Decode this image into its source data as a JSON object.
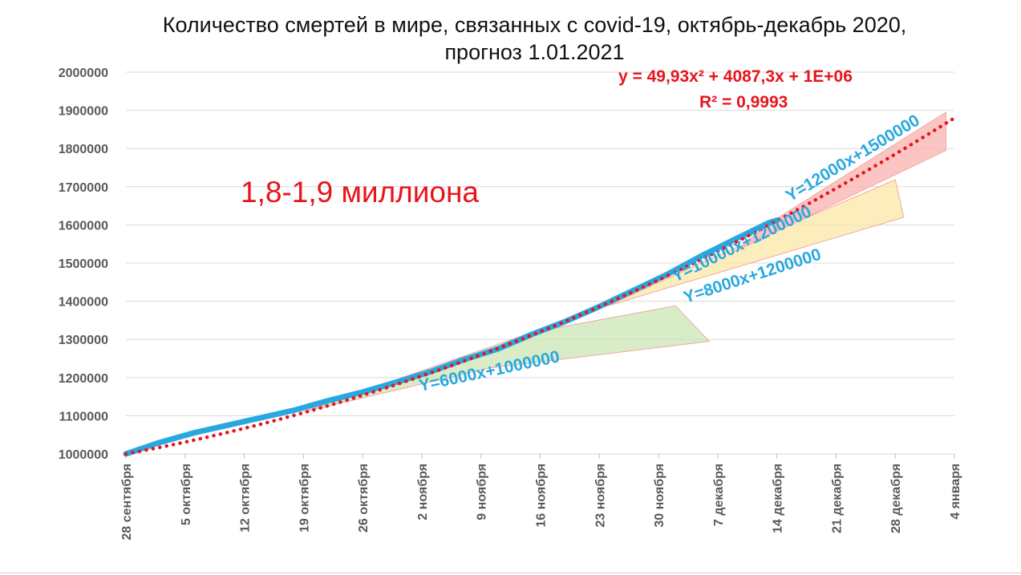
{
  "chart_data": {
    "type": "line",
    "title_line1": "Количество смертей в мире, связанных с covid-19,  октябрь-декабрь 2020,",
    "title_line2": "прогноз 1.01.2021",
    "ylim": [
      1000000,
      2000000
    ],
    "yticks": [
      "1000000",
      "1100000",
      "1200000",
      "1300000",
      "1400000",
      "1500000",
      "1600000",
      "1700000",
      "1800000",
      "1900000",
      "2000000"
    ],
    "xticks": [
      {
        "label": "28 сентября",
        "day": 0
      },
      {
        "label": "5 октября",
        "day": 7
      },
      {
        "label": "12 октября",
        "day": 14
      },
      {
        "label": "19 октября",
        "day": 21
      },
      {
        "label": "26 октября",
        "day": 28
      },
      {
        "label": "2 ноября",
        "day": 35
      },
      {
        "label": "9 ноября",
        "day": 42
      },
      {
        "label": "16 ноября",
        "day": 49
      },
      {
        "label": "23 ноября",
        "day": 56
      },
      {
        "label": "30 ноября",
        "day": 63
      },
      {
        "label": "7 декабря",
        "day": 70
      },
      {
        "label": "14 декабря",
        "day": 77
      },
      {
        "label": "21 декабря",
        "day": 84
      },
      {
        "label": "28 декабря",
        "day": 91
      },
      {
        "label": "4 января",
        "day": 98
      }
    ],
    "x_range_days": [
      0,
      98
    ],
    "grid": true,
    "series": [
      {
        "role": "actual",
        "color": "#29a8e0",
        "points": [
          [
            0,
            1000000
          ],
          [
            4,
            1030000
          ],
          [
            8,
            1055000
          ],
          [
            12,
            1075000
          ],
          [
            16,
            1095000
          ],
          [
            20,
            1115000
          ],
          [
            24,
            1140000
          ],
          [
            28,
            1162000
          ],
          [
            32,
            1188000
          ],
          [
            36,
            1215000
          ],
          [
            40,
            1247000
          ],
          [
            44,
            1275000
          ],
          [
            48,
            1313000
          ],
          [
            52,
            1347000
          ],
          [
            56,
            1386000
          ],
          [
            60,
            1428000
          ],
          [
            64,
            1470000
          ],
          [
            68,
            1518000
          ],
          [
            72,
            1562000
          ],
          [
            76,
            1605000
          ],
          [
            77,
            1612000
          ]
        ]
      }
    ],
    "trend": {
      "color": "#e8141b",
      "equation": "y = 49,93x² + 4087,3x + 1E+06",
      "r2": "R² = 0,9993",
      "x_range_days": [
        0,
        98
      ]
    },
    "scenarios": [
      {
        "label": "Y=6000x+1000000",
        "color": "#c9e6b4",
        "points": [
          [
            21,
            1110000
          ],
          [
            43,
            1225000
          ],
          [
            69,
            1295000
          ],
          [
            65,
            1388000
          ],
          [
            48,
            1318000
          ]
        ]
      },
      {
        "label": "Y=8000x+1200000",
        "color": "#fbe7a6",
        "points": [
          [
            57,
            1388000
          ],
          [
            92,
            1620000
          ],
          [
            91,
            1718000
          ],
          [
            69,
            1510000
          ]
        ]
      },
      {
        "label": "Y=10000x+1200000",
        "color": "#f9b1b0",
        "points": [
          [
            72,
            1530000
          ],
          [
            97,
            1795000
          ],
          [
            97,
            1895000
          ],
          [
            76,
            1603000
          ]
        ]
      },
      {
        "label": "Y=12000x+1500000"
      }
    ],
    "annotation": "1,8-1,9 миллиона"
  }
}
